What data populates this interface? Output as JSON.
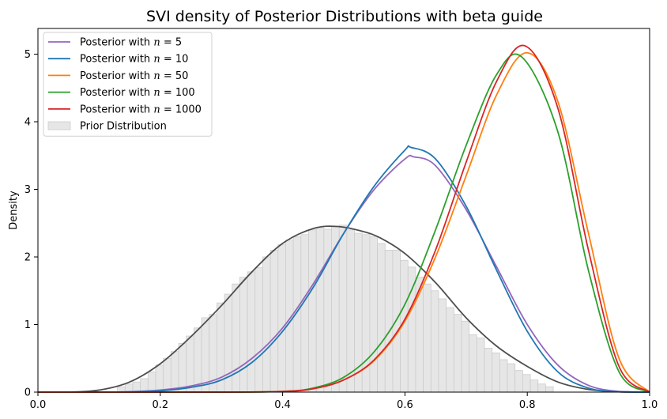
{
  "chart_data": {
    "type": "line",
    "title": "SVI density of Posterior Distributions with beta guide",
    "xlabel": "",
    "ylabel": "Density",
    "xlim": [
      0.0,
      1.0
    ],
    "ylim": [
      0,
      5.38
    ],
    "xticks": [
      "0.0",
      "0.2",
      "0.4",
      "0.6",
      "0.8",
      "1.0"
    ],
    "yticks": [
      "0",
      "1",
      "2",
      "3",
      "4",
      "5"
    ],
    "legend_position": "top-left",
    "series": [
      {
        "name": "Posterior with n = 5",
        "legend_prefix": "Posterior with ",
        "legend_var": "n",
        "legend_value": "= 5",
        "color": "#9467bd",
        "x": [
          0.0,
          0.05,
          0.1,
          0.15,
          0.2,
          0.25,
          0.3,
          0.35,
          0.4,
          0.45,
          0.5,
          0.55,
          0.6,
          0.615,
          0.65,
          0.7,
          0.75,
          0.8,
          0.85,
          0.9,
          0.95,
          1.0
        ],
        "y": [
          0.0,
          0.0,
          0.0,
          0.006,
          0.03,
          0.09,
          0.22,
          0.5,
          0.95,
          1.6,
          2.35,
          3.0,
          3.45,
          3.48,
          3.35,
          2.7,
          1.85,
          1.0,
          0.4,
          0.1,
          0.01,
          0.0
        ]
      },
      {
        "name": "Posterior with n = 10",
        "legend_prefix": "Posterior with ",
        "legend_var": "n",
        "legend_value": "= 10",
        "color": "#1f77b4",
        "x": [
          0.0,
          0.1,
          0.15,
          0.2,
          0.25,
          0.3,
          0.35,
          0.4,
          0.45,
          0.5,
          0.55,
          0.6,
          0.61,
          0.65,
          0.7,
          0.75,
          0.8,
          0.85,
          0.9,
          0.95,
          1.0
        ],
        "y": [
          0.0,
          0.0,
          0.004,
          0.02,
          0.07,
          0.18,
          0.44,
          0.9,
          1.55,
          2.35,
          3.05,
          3.58,
          3.62,
          3.45,
          2.75,
          1.8,
          0.9,
          0.3,
          0.06,
          0.005,
          0.0
        ]
      },
      {
        "name": "Posterior with n = 50",
        "legend_prefix": "Posterior with ",
        "legend_var": "n",
        "legend_value": "= 50",
        "color": "#ff7f0e",
        "x": [
          0.0,
          0.3,
          0.4,
          0.45,
          0.5,
          0.55,
          0.6,
          0.65,
          0.7,
          0.75,
          0.8,
          0.85,
          0.9,
          0.95,
          1.0
        ],
        "y": [
          0.0,
          0.0,
          0.01,
          0.05,
          0.18,
          0.47,
          1.05,
          2.0,
          3.2,
          4.4,
          5.02,
          4.3,
          2.35,
          0.5,
          0.0
        ]
      },
      {
        "name": "Posterior with n = 100",
        "legend_prefix": "Posterior with ",
        "legend_var": "n",
        "legend_value": "= 100",
        "color": "#2ca02c",
        "x": [
          0.0,
          0.3,
          0.4,
          0.45,
          0.5,
          0.55,
          0.6,
          0.65,
          0.7,
          0.75,
          0.792,
          0.85,
          0.9,
          0.95,
          1.0
        ],
        "y": [
          0.0,
          0.0,
          0.01,
          0.06,
          0.22,
          0.6,
          1.3,
          2.4,
          3.65,
          4.7,
          4.95,
          3.85,
          1.8,
          0.3,
          0.0
        ]
      },
      {
        "name": "Posterior with n = 1000",
        "legend_prefix": "Posterior with ",
        "legend_var": "n",
        "legend_value": "= 1000",
        "color": "#d62728",
        "x": [
          0.0,
          0.3,
          0.4,
          0.45,
          0.5,
          0.55,
          0.6,
          0.65,
          0.7,
          0.75,
          0.797,
          0.85,
          0.9,
          0.95,
          1.0
        ],
        "y": [
          0.0,
          0.0,
          0.01,
          0.05,
          0.18,
          0.48,
          1.08,
          2.1,
          3.4,
          4.6,
          5.12,
          4.2,
          2.1,
          0.38,
          0.0
        ]
      }
    ],
    "prior": {
      "name": "Prior Distribution",
      "kde_color": "#4d4d4d",
      "hist_fill": "#e6e6e6",
      "hist_edge": "#cccccc",
      "hist_bin_start": 0.13,
      "hist_bin_width": 0.0125,
      "hist_values": [
        0.08,
        0.12,
        0.15,
        0.2,
        0.3,
        0.4,
        0.5,
        0.6,
        0.72,
        0.83,
        0.95,
        1.1,
        1.15,
        1.32,
        1.45,
        1.6,
        1.7,
        1.78,
        1.84,
        2.0,
        2.1,
        2.18,
        2.25,
        2.3,
        2.33,
        2.4,
        2.43,
        2.41,
        2.45,
        2.47,
        2.4,
        2.35,
        2.33,
        2.3,
        2.2,
        2.1,
        2.1,
        1.95,
        1.85,
        1.7,
        1.6,
        1.5,
        1.38,
        1.25,
        1.15,
        1.05,
        0.85,
        0.8,
        0.65,
        0.58,
        0.48,
        0.42,
        0.32,
        0.26,
        0.18,
        0.12,
        0.08
      ],
      "kde_x": [
        0.0,
        0.05,
        0.1,
        0.15,
        0.2,
        0.25,
        0.3,
        0.35,
        0.4,
        0.45,
        0.49,
        0.53,
        0.56,
        0.6,
        0.65,
        0.7,
        0.75,
        0.8,
        0.85,
        0.9,
        0.95,
        1.0
      ],
      "kde_y": [
        0.0,
        0.0,
        0.03,
        0.15,
        0.42,
        0.82,
        1.28,
        1.78,
        2.2,
        2.42,
        2.45,
        2.38,
        2.28,
        2.05,
        1.62,
        1.1,
        0.68,
        0.38,
        0.15,
        0.04,
        0.005,
        0.0
      ]
    }
  }
}
